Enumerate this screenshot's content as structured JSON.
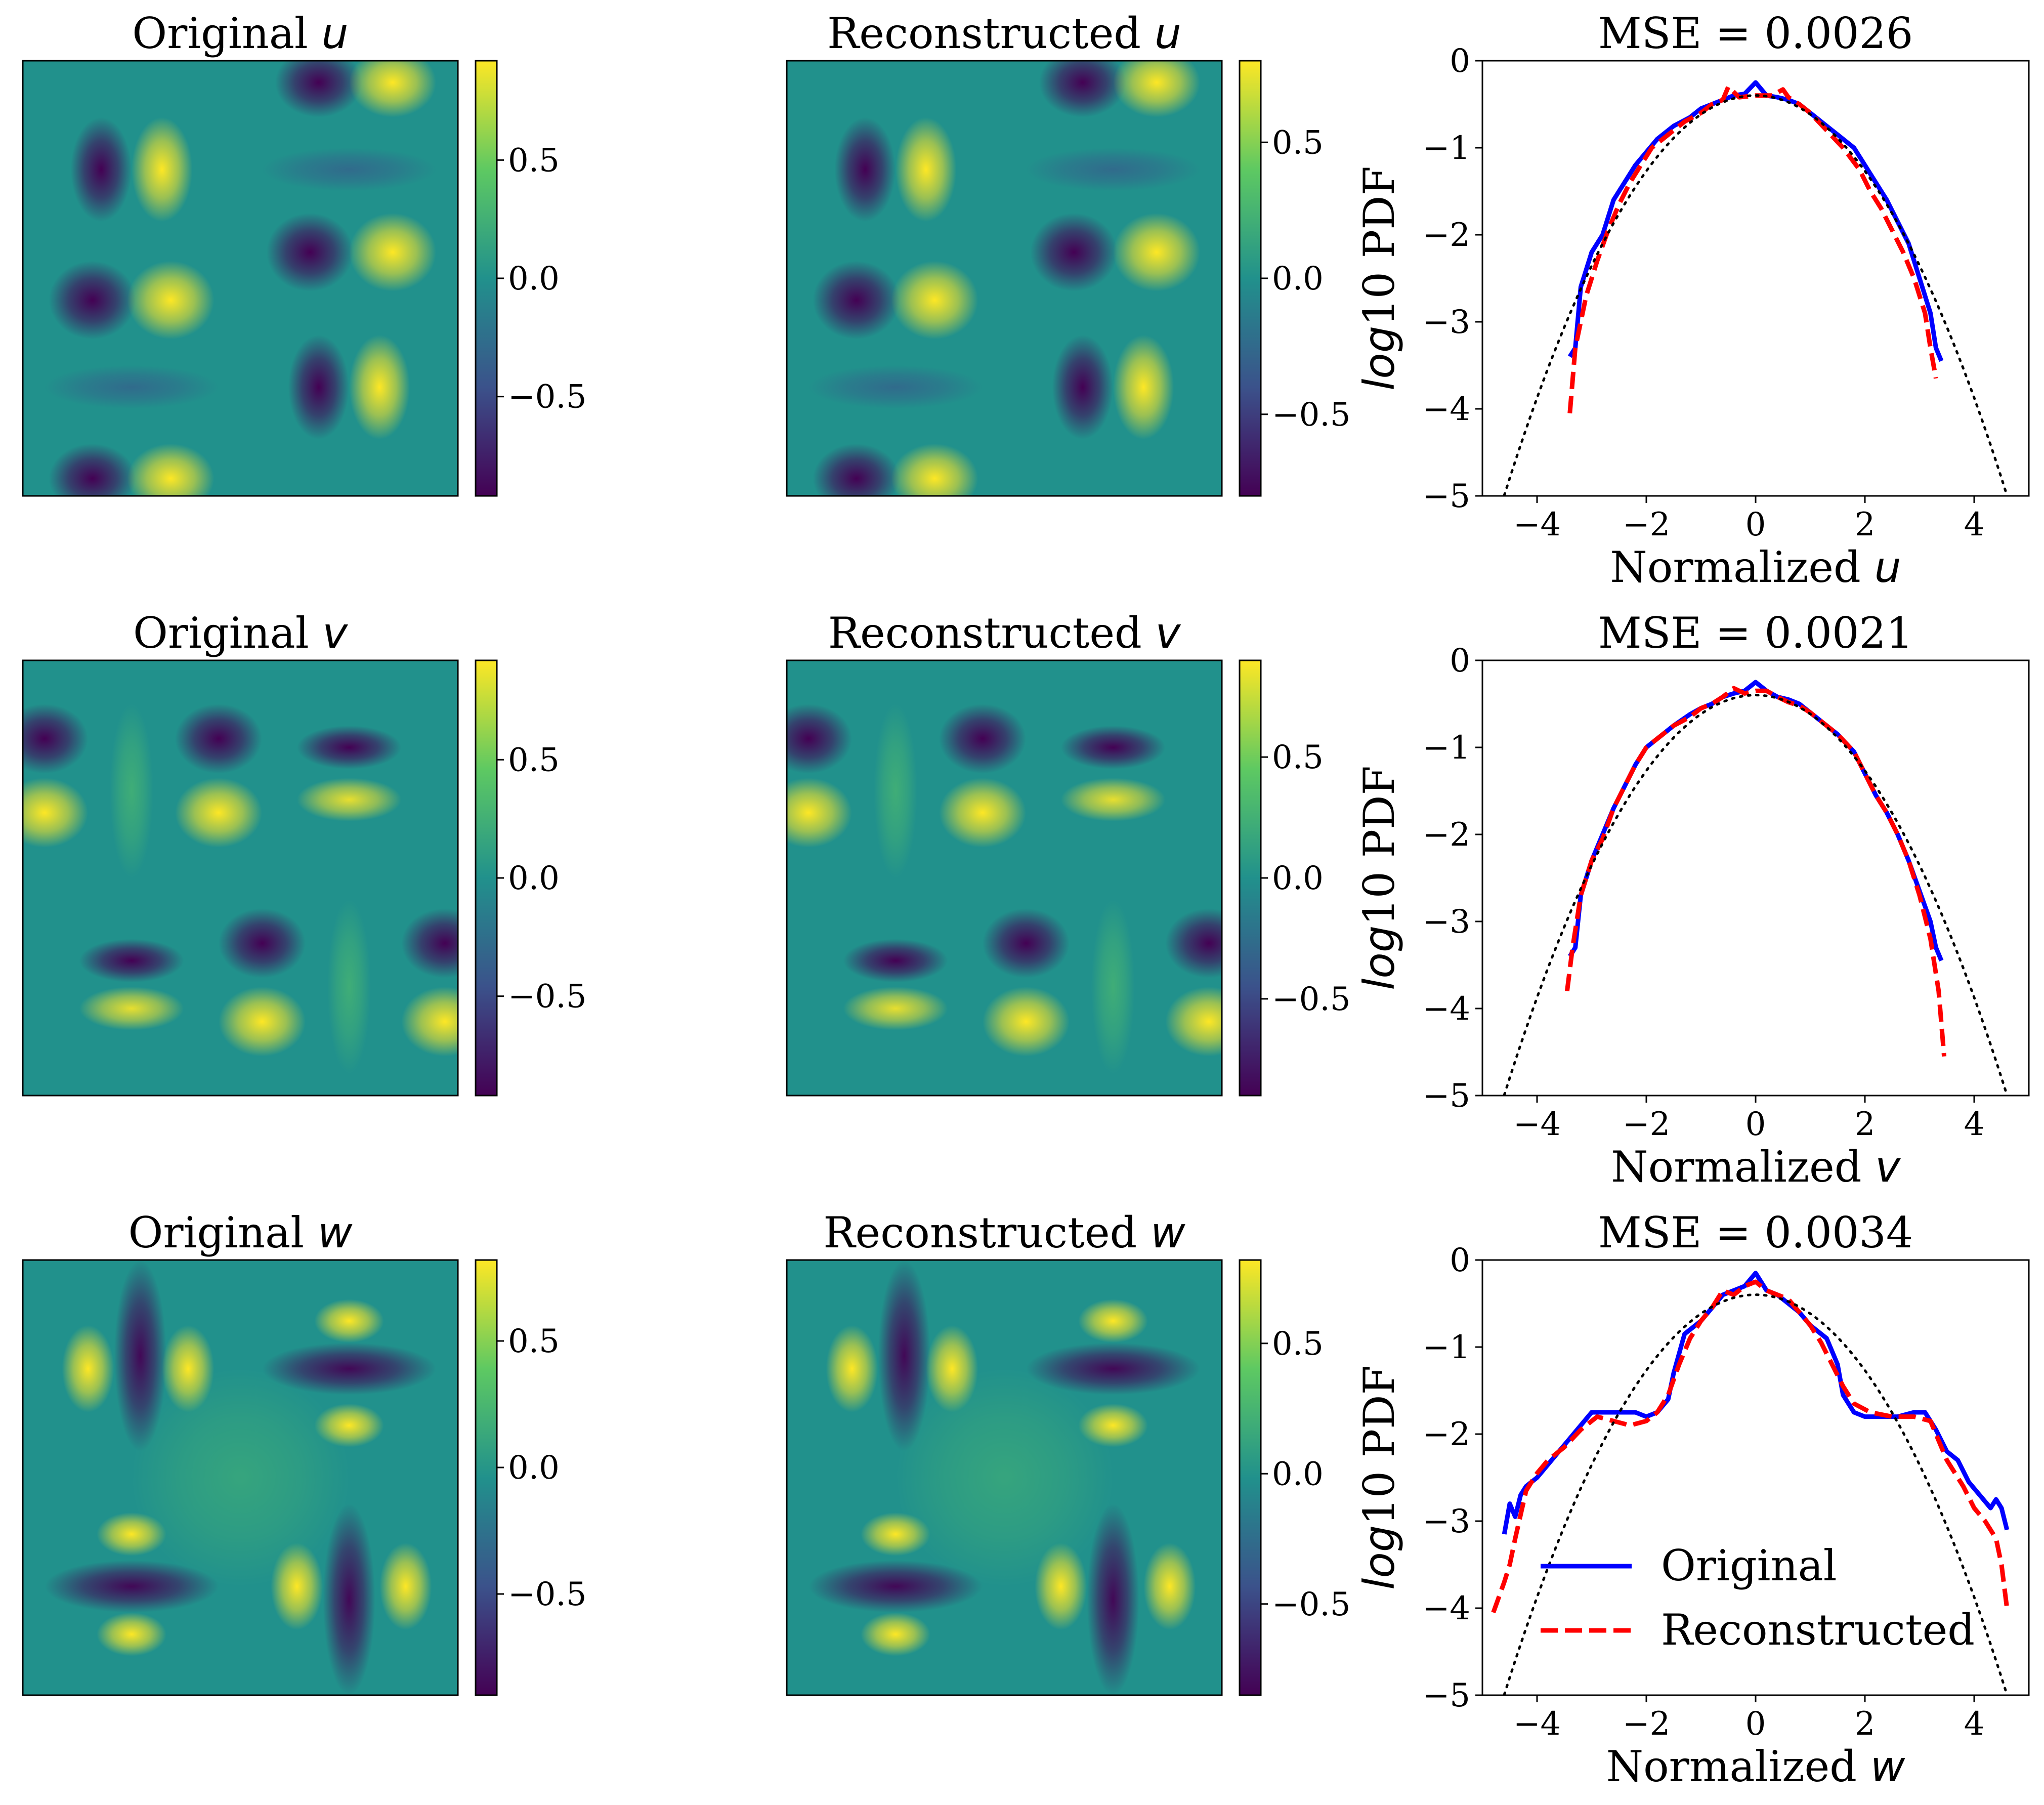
{
  "figure_domain": "Chart",
  "colors": {
    "original": "#0000ff",
    "reconstructed": "#ff0000",
    "gaussian": "#000000"
  },
  "colormap": [
    "#440154",
    "#3b528b",
    "#21918c",
    "#5ec962",
    "#fde725"
  ],
  "legend": {
    "original": "Original",
    "reconstructed": "Reconstructed",
    "location": "lower-center"
  },
  "chart_data": [
    {
      "type": "heatmap",
      "row": 0,
      "kind": "original",
      "title_prefix": "Original ",
      "var": "u",
      "colorbar": {
        "min": -0.92,
        "max": 0.92,
        "ticks": [
          "0.5",
          "0.0",
          "−0.5"
        ],
        "tick_values": [
          0.5,
          0.0,
          -0.5
        ]
      }
    },
    {
      "type": "heatmap",
      "row": 0,
      "kind": "reconstructed",
      "title_prefix": "Reconstructed ",
      "var": "u",
      "colorbar": {
        "min": -0.8,
        "max": 0.8,
        "ticks": [
          "0.5",
          "0.0",
          "−0.5"
        ],
        "tick_values": [
          0.5,
          0.0,
          -0.5
        ]
      }
    },
    {
      "type": "line",
      "row": 0,
      "title": "MSE = 0.0026",
      "xlabel_prefix": "Normalized ",
      "xlabel_var": "u",
      "ylabel_prefix": "log",
      "ylabel_suffix": "10 PDF",
      "xlim": [
        -5.0,
        5.0
      ],
      "ylim": [
        -5,
        0
      ],
      "xticks": [
        -4,
        -2,
        0,
        2,
        4
      ],
      "xtick_labels": [
        "−4",
        "−2",
        "0",
        "2",
        "4"
      ],
      "yticks": [
        0,
        -1,
        -2,
        -3,
        -4,
        -5
      ],
      "ytick_labels": [
        "0",
        "−1",
        "−2",
        "−3",
        "−4",
        "−5"
      ],
      "series": [
        {
          "name": "Original",
          "style": "solid",
          "x": [
            -3.4,
            -3.3,
            -3.2,
            -3.0,
            -2.8,
            -2.6,
            -2.4,
            -2.2,
            -2.0,
            -1.8,
            -1.5,
            -1.2,
            -1.0,
            -0.8,
            -0.6,
            -0.4,
            -0.2,
            0.0,
            0.2,
            0.4,
            0.6,
            0.8,
            1.0,
            1.2,
            1.5,
            1.8,
            2.0,
            2.2,
            2.4,
            2.6,
            2.8,
            3.0,
            3.2,
            3.3,
            3.4
          ],
          "y": [
            -3.4,
            -3.3,
            -2.6,
            -2.2,
            -2.0,
            -1.6,
            -1.4,
            -1.2,
            -1.05,
            -0.9,
            -0.75,
            -0.65,
            -0.55,
            -0.5,
            -0.45,
            -0.4,
            -0.38,
            -0.25,
            -0.4,
            -0.42,
            -0.45,
            -0.5,
            -0.6,
            -0.7,
            -0.85,
            -1.0,
            -1.2,
            -1.4,
            -1.6,
            -1.85,
            -2.1,
            -2.5,
            -2.9,
            -3.3,
            -3.45
          ]
        },
        {
          "name": "Reconstructed",
          "style": "dashed",
          "x": [
            -3.4,
            -3.3,
            -3.1,
            -2.9,
            -2.7,
            -2.5,
            -2.3,
            -2.1,
            -1.9,
            -1.6,
            -1.3,
            -1.0,
            -0.8,
            -0.6,
            -0.5,
            -0.3,
            0.0,
            0.3,
            0.5,
            0.6,
            0.8,
            1.0,
            1.3,
            1.6,
            1.9,
            2.1,
            2.3,
            2.5,
            2.7,
            2.9,
            3.1,
            3.2,
            3.3
          ],
          "y": [
            -4.05,
            -3.3,
            -2.7,
            -2.3,
            -1.95,
            -1.65,
            -1.4,
            -1.2,
            -1.0,
            -0.85,
            -0.7,
            -0.6,
            -0.5,
            -0.45,
            -0.3,
            -0.42,
            -0.4,
            -0.4,
            -0.33,
            -0.42,
            -0.5,
            -0.6,
            -0.8,
            -1.0,
            -1.25,
            -1.5,
            -1.7,
            -1.95,
            -2.2,
            -2.5,
            -2.9,
            -3.3,
            -3.65
          ]
        },
        {
          "name": "Gaussian",
          "style": "dotted",
          "gaussian": true,
          "x_range": [
            -4.6,
            4.6
          ]
        }
      ]
    },
    {
      "type": "heatmap",
      "row": 1,
      "kind": "original",
      "title_prefix": "Original ",
      "var": "v",
      "colorbar": {
        "min": -0.92,
        "max": 0.92,
        "ticks": [
          "0.5",
          "0.0",
          "−0.5"
        ],
        "tick_values": [
          0.5,
          0.0,
          -0.5
        ]
      }
    },
    {
      "type": "heatmap",
      "row": 1,
      "kind": "reconstructed",
      "title_prefix": "Reconstructed ",
      "var": "v",
      "colorbar": {
        "min": -0.9,
        "max": 0.9,
        "ticks": [
          "0.5",
          "0.0",
          "−0.5"
        ],
        "tick_values": [
          0.5,
          0.0,
          -0.5
        ]
      }
    },
    {
      "type": "line",
      "row": 1,
      "title": "MSE = 0.0021",
      "xlabel_prefix": "Normalized ",
      "xlabel_var": "v",
      "ylabel_prefix": "log",
      "ylabel_suffix": "10 PDF",
      "xlim": [
        -5.0,
        5.0
      ],
      "ylim": [
        -5,
        0
      ],
      "xticks": [
        -4,
        -2,
        0,
        2,
        4
      ],
      "xtick_labels": [
        "−4",
        "−2",
        "0",
        "2",
        "4"
      ],
      "yticks": [
        0,
        -1,
        -2,
        -3,
        -4,
        -5
      ],
      "ytick_labels": [
        "0",
        "−1",
        "−2",
        "−3",
        "−4",
        "−5"
      ],
      "series": [
        {
          "name": "Original",
          "style": "solid",
          "x": [
            -3.4,
            -3.3,
            -3.2,
            -3.0,
            -2.8,
            -2.6,
            -2.4,
            -2.2,
            -2.0,
            -1.8,
            -1.5,
            -1.2,
            -1.0,
            -0.8,
            -0.6,
            -0.4,
            -0.2,
            0.0,
            0.2,
            0.4,
            0.6,
            0.8,
            1.0,
            1.2,
            1.5,
            1.8,
            2.0,
            2.2,
            2.4,
            2.6,
            2.8,
            3.0,
            3.2,
            3.3,
            3.4
          ],
          "y": [
            -3.4,
            -3.3,
            -2.7,
            -2.3,
            -2.0,
            -1.7,
            -1.45,
            -1.2,
            -1.0,
            -0.9,
            -0.75,
            -0.62,
            -0.55,
            -0.5,
            -0.42,
            -0.38,
            -0.35,
            -0.25,
            -0.35,
            -0.42,
            -0.45,
            -0.5,
            -0.6,
            -0.7,
            -0.85,
            -1.05,
            -1.3,
            -1.55,
            -1.75,
            -2.0,
            -2.3,
            -2.65,
            -3.0,
            -3.3,
            -3.45
          ]
        },
        {
          "name": "Reconstructed",
          "style": "dashed",
          "x": [
            -3.45,
            -3.35,
            -3.2,
            -3.0,
            -2.8,
            -2.6,
            -2.4,
            -2.2,
            -2.0,
            -1.8,
            -1.5,
            -1.2,
            -1.0,
            -0.8,
            -0.6,
            -0.4,
            -0.2,
            0.0,
            0.2,
            0.4,
            0.6,
            0.8,
            1.0,
            1.2,
            1.5,
            1.8,
            2.0,
            2.2,
            2.4,
            2.6,
            2.8,
            3.0,
            3.2,
            3.35,
            3.45
          ],
          "y": [
            -3.8,
            -3.3,
            -2.7,
            -2.3,
            -2.05,
            -1.7,
            -1.45,
            -1.2,
            -1.0,
            -0.9,
            -0.75,
            -0.65,
            -0.55,
            -0.5,
            -0.42,
            -0.32,
            -0.38,
            -0.35,
            -0.35,
            -0.42,
            -0.48,
            -0.52,
            -0.6,
            -0.7,
            -0.85,
            -1.05,
            -1.3,
            -1.55,
            -1.75,
            -2.0,
            -2.3,
            -2.7,
            -3.2,
            -3.8,
            -4.55
          ]
        },
        {
          "name": "Gaussian",
          "style": "dotted",
          "gaussian": true,
          "x_range": [
            -4.6,
            4.6
          ]
        }
      ]
    },
    {
      "type": "heatmap",
      "row": 2,
      "kind": "original",
      "title_prefix": "Original ",
      "var": "w",
      "colorbar": {
        "min": -0.9,
        "max": 0.82,
        "ticks": [
          "0.5",
          "0.0",
          "−0.5"
        ],
        "tick_values": [
          0.5,
          0.0,
          -0.5
        ]
      }
    },
    {
      "type": "heatmap",
      "row": 2,
      "kind": "reconstructed",
      "title_prefix": "Reconstructed ",
      "var": "w",
      "colorbar": {
        "min": -0.85,
        "max": 0.82,
        "ticks": [
          "0.5",
          "0.0",
          "−0.5"
        ],
        "tick_values": [
          0.5,
          0.0,
          -0.5
        ]
      }
    },
    {
      "type": "line",
      "row": 2,
      "title": "MSE = 0.0034",
      "xlabel_prefix": "Normalized ",
      "xlabel_var": "w",
      "ylabel_prefix": "log",
      "ylabel_suffix": "10 PDF",
      "xlim": [
        -5.0,
        5.0
      ],
      "ylim": [
        -5,
        0
      ],
      "xticks": [
        -4,
        -2,
        0,
        2,
        4
      ],
      "xtick_labels": [
        "−4",
        "−2",
        "0",
        "2",
        "4"
      ],
      "yticks": [
        0,
        -1,
        -2,
        -3,
        -4,
        -5
      ],
      "ytick_labels": [
        "0",
        "−1",
        "−2",
        "−3",
        "−4",
        "−5"
      ],
      "series": [
        {
          "name": "Original",
          "style": "solid",
          "x": [
            -4.6,
            -4.5,
            -4.4,
            -4.3,
            -4.2,
            -4.0,
            -3.8,
            -3.6,
            -3.4,
            -3.2,
            -3.0,
            -2.8,
            -2.5,
            -2.2,
            -2.0,
            -1.8,
            -1.6,
            -1.5,
            -1.3,
            -1.0,
            -0.8,
            -0.6,
            -0.4,
            -0.2,
            0.0,
            0.2,
            0.4,
            0.6,
            0.8,
            1.0,
            1.3,
            1.5,
            1.6,
            1.8,
            2.0,
            2.3,
            2.6,
            2.9,
            3.1,
            3.3,
            3.5,
            3.7,
            3.9,
            4.1,
            4.3,
            4.4,
            4.5,
            4.6
          ],
          "y": [
            -3.15,
            -2.8,
            -2.95,
            -2.7,
            -2.6,
            -2.5,
            -2.35,
            -2.2,
            -2.05,
            -1.9,
            -1.75,
            -1.75,
            -1.75,
            -1.75,
            -1.8,
            -1.75,
            -1.6,
            -1.3,
            -0.85,
            -0.7,
            -0.55,
            -0.4,
            -0.35,
            -0.3,
            -0.15,
            -0.35,
            -0.4,
            -0.5,
            -0.6,
            -0.75,
            -0.9,
            -1.2,
            -1.55,
            -1.75,
            -1.8,
            -1.8,
            -1.8,
            -1.75,
            -1.75,
            -1.95,
            -2.2,
            -2.3,
            -2.55,
            -2.7,
            -2.85,
            -2.75,
            -2.85,
            -3.1
          ]
        },
        {
          "name": "Reconstructed",
          "style": "dashed",
          "x": [
            -4.8,
            -4.6,
            -4.5,
            -4.4,
            -4.2,
            -4.0,
            -3.8,
            -3.5,
            -3.2,
            -2.9,
            -2.6,
            -2.3,
            -2.0,
            -1.8,
            -1.6,
            -1.4,
            -1.2,
            -1.0,
            -0.8,
            -0.6,
            -0.4,
            -0.2,
            0.0,
            0.2,
            0.4,
            0.6,
            0.8,
            1.0,
            1.2,
            1.4,
            1.6,
            1.8,
            2.1,
            2.5,
            2.9,
            3.2,
            3.5,
            3.8,
            4.0,
            4.2,
            4.4,
            4.5,
            4.6
          ],
          "y": [
            -4.05,
            -3.7,
            -3.5,
            -3.2,
            -2.65,
            -2.45,
            -2.3,
            -2.15,
            -1.95,
            -1.8,
            -1.85,
            -1.9,
            -1.85,
            -1.75,
            -1.55,
            -1.2,
            -0.9,
            -0.7,
            -0.55,
            -0.35,
            -0.4,
            -0.3,
            -0.25,
            -0.35,
            -0.4,
            -0.45,
            -0.6,
            -0.75,
            -0.95,
            -1.2,
            -1.45,
            -1.65,
            -1.75,
            -1.8,
            -1.8,
            -1.85,
            -2.3,
            -2.6,
            -2.85,
            -3.0,
            -3.2,
            -3.5,
            -4.0
          ]
        },
        {
          "name": "Gaussian",
          "style": "dotted",
          "gaussian": true,
          "x_range": [
            -4.6,
            4.6
          ]
        }
      ]
    }
  ]
}
